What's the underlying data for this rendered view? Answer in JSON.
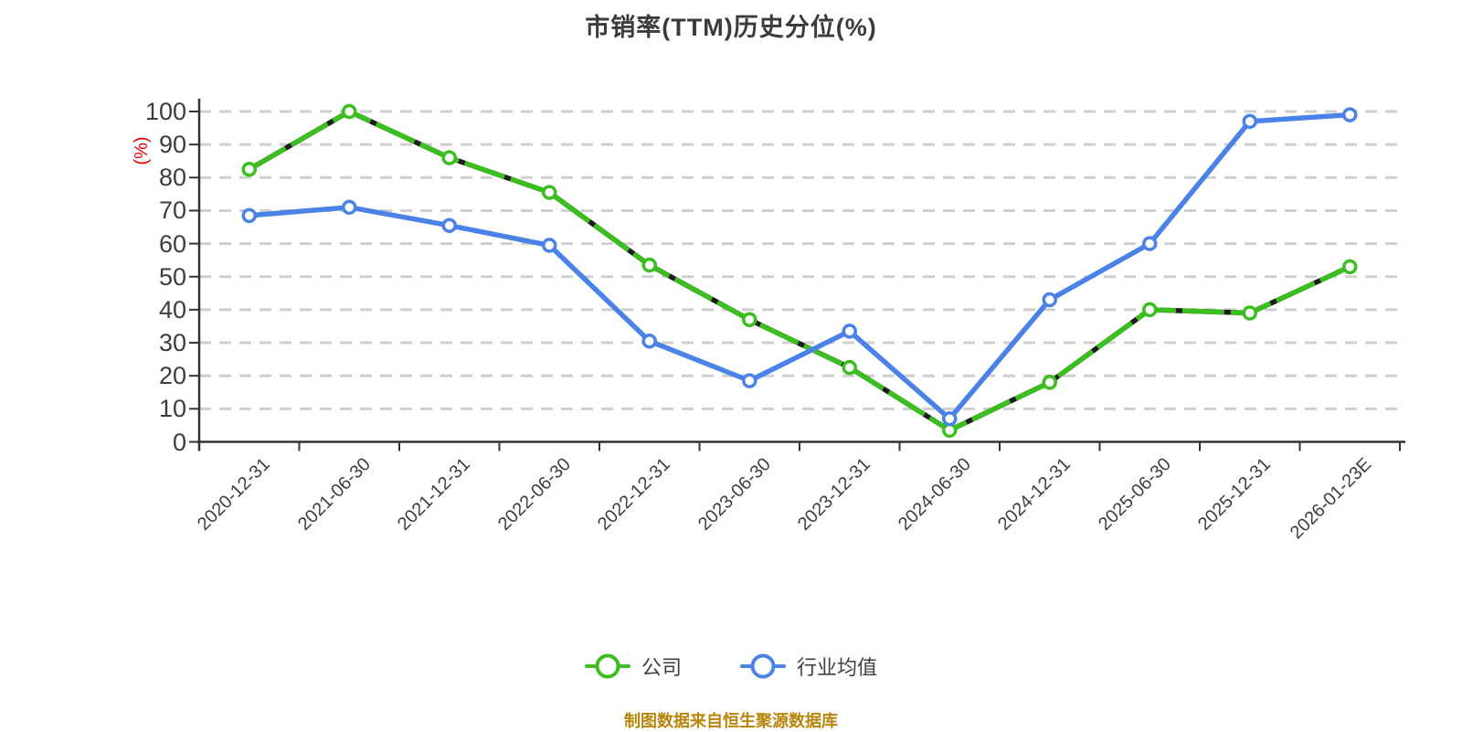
{
  "chart_data": {
    "type": "line",
    "title": "市销率(TTM)历史分位(%)",
    "ylabel": "(%)",
    "source_note": "制图数据来自恒生聚源数据库",
    "categories": [
      "2020-12-31",
      "2021-06-30",
      "2021-12-31",
      "2022-06-30",
      "2022-12-31",
      "2023-06-30",
      "2023-12-31",
      "2024-06-30",
      "2024-12-31",
      "2025-06-30",
      "2025-12-31",
      "2026-01-23E"
    ],
    "series": [
      {
        "name": "公司",
        "color": "#3cbe20",
        "marker": "circle-white-fill",
        "line_style": "solid-with-dark-dashes",
        "values": [
          82.5,
          100,
          86,
          75.5,
          53.5,
          37,
          22.5,
          3.5,
          18,
          40,
          39,
          53
        ]
      },
      {
        "name": "行业均值",
        "color": "#4b82e8",
        "marker": "circle-white-fill",
        "line_style": "solid",
        "values": [
          68.5,
          71,
          65.5,
          59.5,
          30.5,
          18.5,
          33.5,
          7,
          43,
          60,
          97,
          99
        ]
      }
    ],
    "ylim": [
      0,
      100
    ],
    "yticks": [
      0,
      10,
      20,
      30,
      40,
      50,
      60,
      70,
      80,
      90,
      100
    ],
    "grid": "horizontal-dashed",
    "legend_position": "bottom",
    "colors": {
      "title": "#3b3b3b",
      "axis": "#333333",
      "tick_label": "#3d3d3d",
      "gridline": "#cfcfcf",
      "ylabel_red": "#e60000",
      "source_note": "#b8860b",
      "company_green": "#3cbe20",
      "industry_blue": "#4b82e8",
      "green_dash_overlay": "#1c1c1c"
    }
  }
}
